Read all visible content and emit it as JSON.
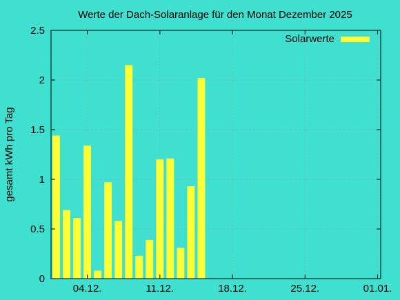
{
  "colors": {
    "background": "#40e0d0",
    "bar": "#ffff33",
    "grid": "#a0a0a0",
    "axis": "#000000"
  },
  "chart_data": {
    "type": "bar",
    "title": "Werte der Dach-Solaranlage für den Monat Dezember 2025",
    "xlabel": "",
    "ylabel": "gesamt kWh pro Tag",
    "ylim": [
      0,
      2.5
    ],
    "y_ticks": [
      "0",
      "0.5",
      "1",
      "1.5",
      "2",
      "2.5"
    ],
    "y_tick_values": [
      0,
      0.5,
      1,
      1.5,
      2,
      2.5
    ],
    "x_ticks": [
      "04.12.",
      "11.12.",
      "18.12.",
      "25.12.",
      "01.01."
    ],
    "x_tick_days": [
      4,
      11,
      18,
      25,
      32
    ],
    "x_range_days": [
      0.5,
      32.3
    ],
    "grid": true,
    "legend_position": "top-right",
    "series": [
      {
        "name": "Solarwerte",
        "color": "#ffff33",
        "days": [
          1,
          2,
          3,
          4,
          5,
          6,
          7,
          8,
          9,
          10,
          11,
          12,
          13,
          14,
          15
        ],
        "values": [
          1.44,
          0.69,
          0.61,
          1.34,
          0.08,
          0.97,
          0.58,
          2.15,
          0.23,
          0.39,
          1.2,
          1.21,
          0.31,
          0.93,
          2.02
        ]
      }
    ]
  }
}
